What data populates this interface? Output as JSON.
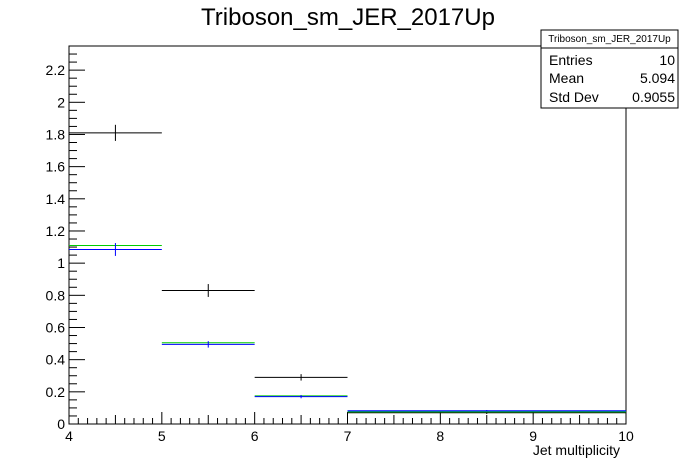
{
  "chart_data": {
    "type": "line",
    "title": "Triboson_sm_JER_2017Up",
    "xlabel": "Jet multiplicity",
    "ylabel": "",
    "xlim": [
      4,
      10
    ],
    "ylim": [
      0,
      2.35
    ],
    "x_ticks": [
      "4",
      "5",
      "6",
      "7",
      "8",
      "9",
      "10"
    ],
    "y_ticks": [
      "0",
      "0.2",
      "0.4",
      "0.6",
      "0.8",
      "1",
      "1.2",
      "1.4",
      "1.6",
      "1.8",
      "2",
      "2.2"
    ],
    "grid": false,
    "bins": [
      [
        4,
        5
      ],
      [
        5,
        6
      ],
      [
        6,
        7
      ],
      [
        7,
        10
      ]
    ],
    "series": [
      {
        "values": [
          1.81,
          0.83,
          0.29,
          0.07
        ],
        "errors": [
          0.05,
          0.04,
          0.02,
          0.008
        ],
        "color": "#000000"
      },
      {
        "values": [
          1.11,
          0.505,
          0.175,
          0.075
        ],
        "errors": [
          0.0,
          0.0,
          0.0,
          0.0
        ],
        "color": "#00cc00"
      },
      {
        "values": [
          1.085,
          0.495,
          0.17,
          0.082
        ],
        "errors": [
          0.04,
          0.02,
          0.01,
          0.005
        ],
        "color": "#0000ff"
      },
      {
        "values": [
          null,
          null,
          null,
          0.078
        ],
        "errors": [
          0,
          0,
          0,
          0
        ],
        "color": "#008080"
      }
    ],
    "stats_box": {
      "title": "Triboson_sm_JER_2017Up",
      "rows": [
        {
          "label": "Entries",
          "value": "10"
        },
        {
          "label": "Mean",
          "value": "5.094"
        },
        {
          "label": "Std Dev",
          "value": "0.9055"
        }
      ]
    }
  }
}
